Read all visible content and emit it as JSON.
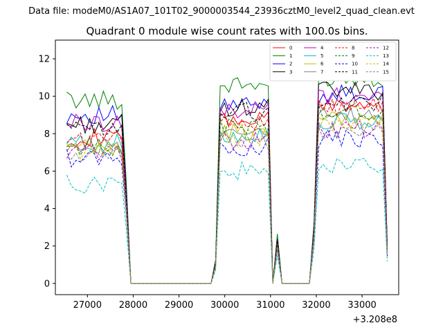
{
  "suptitle": "Data file: modeM0/AS1A07_101T02_9000003544_23936cztM0_level2_quad_clean.evt",
  "chart_data": {
    "type": "line",
    "title": "Quadrant 0 module wise count rates with 100.0s bins.",
    "x_offset_label": "+3.208e8",
    "xlim": [
      26300,
      33800
    ],
    "ylim": [
      -0.6,
      13.0
    ],
    "x_ticks": [
      27000,
      28000,
      29000,
      30000,
      31000,
      32000,
      33000
    ],
    "x_tick_labels": [
      "27000",
      "28000",
      "29000",
      "30000",
      "31000",
      "32000",
      "33000"
    ],
    "y_ticks": [
      0,
      2,
      4,
      6,
      8,
      10,
      12
    ],
    "y_tick_labels": [
      "0",
      "2",
      "4",
      "6",
      "8",
      "10",
      "12"
    ],
    "legend_position": "top-right",
    "segments": [
      {
        "x_start": 26550,
        "x_end": 27750,
        "n": 13
      },
      {
        "x_start": 29900,
        "x_end": 30950,
        "n": 12
      },
      {
        "x_start": 32050,
        "x_end": 33450,
        "n": 15
      }
    ],
    "gap_x": [
      27850,
      27950,
      28050,
      29700,
      29800,
      31050,
      31150,
      31250,
      31850,
      31950,
      33550
    ],
    "series": [
      {
        "name": "0",
        "color": "#ff0000",
        "dash": false,
        "levels": [
          7.8,
          8.7,
          9.5
        ]
      },
      {
        "name": "1",
        "color": "#008000",
        "dash": false,
        "levels": [
          9.8,
          10.6,
          11.0
        ]
      },
      {
        "name": "2",
        "color": "#0000ff",
        "dash": false,
        "levels": [
          9.0,
          9.5,
          10.1
        ]
      },
      {
        "name": "3",
        "color": "#000000",
        "dash": false,
        "levels": [
          8.5,
          9.4,
          10.3
        ]
      },
      {
        "name": "4",
        "color": "#bf00bf",
        "dash": false,
        "levels": [
          8.6,
          9.3,
          10.0
        ]
      },
      {
        "name": "5",
        "color": "#00bfbf",
        "dash": false,
        "levels": [
          7.5,
          8.0,
          8.6
        ]
      },
      {
        "name": "6",
        "color": "#bfbf00",
        "dash": false,
        "levels": [
          7.2,
          8.1,
          8.7
        ]
      },
      {
        "name": "7",
        "color": "#808080",
        "dash": false,
        "levels": [
          7.4,
          8.3,
          8.9
        ]
      },
      {
        "name": "8",
        "color": "#ff0000",
        "dash": true,
        "levels": [
          7.7,
          8.6,
          9.4
        ]
      },
      {
        "name": "9",
        "color": "#008000",
        "dash": true,
        "levels": [
          7.3,
          8.4,
          9.2
        ]
      },
      {
        "name": "10",
        "color": "#0000ff",
        "dash": true,
        "levels": [
          6.7,
          7.3,
          7.7
        ]
      },
      {
        "name": "11",
        "color": "#000000",
        "dash": true,
        "levels": [
          8.2,
          9.2,
          9.6
        ]
      },
      {
        "name": "12",
        "color": "#bf00bf",
        "dash": true,
        "levels": [
          7.0,
          7.6,
          8.2
        ]
      },
      {
        "name": "13",
        "color": "#00bfbf",
        "dash": true,
        "levels": [
          5.3,
          6.0,
          6.2
        ]
      },
      {
        "name": "14",
        "color": "#bfbf00",
        "dash": true,
        "levels": [
          7.1,
          7.8,
          8.5
        ]
      },
      {
        "name": "15",
        "color": "#808080",
        "dash": true,
        "levels": [
          6.8,
          7.6,
          8.1
        ]
      }
    ]
  }
}
